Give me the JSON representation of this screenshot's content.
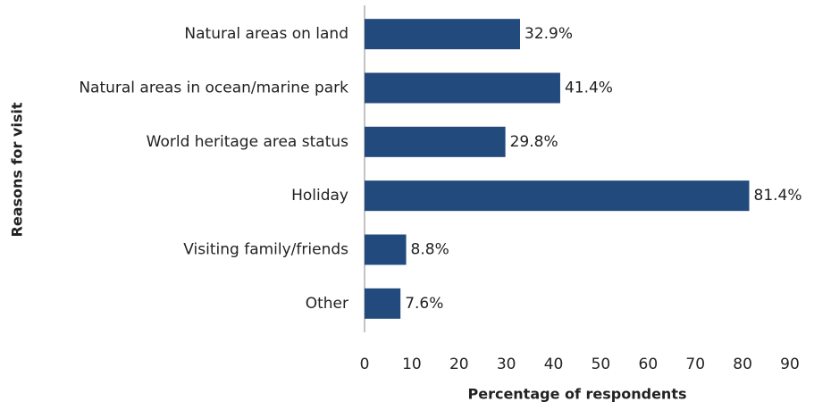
{
  "chart_data": {
    "type": "barh",
    "categories": [
      "Natural areas on land",
      "Natural areas in ocean/marine park",
      "World heritage area status",
      "Holiday",
      "Visiting family/friends",
      "Other"
    ],
    "values": [
      32.9,
      41.4,
      29.8,
      81.4,
      8.8,
      7.6
    ],
    "value_labels": [
      "32.9%",
      "41.4%",
      "29.8%",
      "81.4%",
      "8.8%",
      "7.6%"
    ],
    "color": "#234a7c",
    "xlabel": "Percentage of respondents",
    "ylabel": "Reasons for visit",
    "xlim": [
      0,
      90
    ],
    "xticks": [
      0,
      10,
      20,
      30,
      40,
      50,
      60,
      70,
      80,
      90
    ],
    "grid": false
  }
}
